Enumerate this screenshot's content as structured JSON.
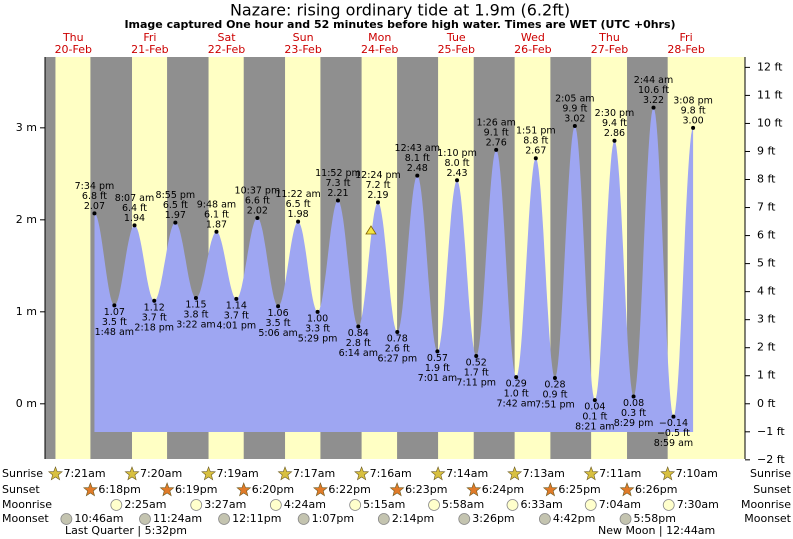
{
  "chart_data": {
    "type": "tide",
    "title": "Nazare: rising  ordinary tide at 1.9m (6.2ft)",
    "subtitle": "Image captured One hour and 52 minutes before high water. Times are WET (UTC +0hrs)",
    "weekdays": [
      "Thu",
      "Fri",
      "Sat",
      "Sun",
      "Mon",
      "Tue",
      "Wed",
      "Thu",
      "Fri"
    ],
    "dates": [
      "20-Feb",
      "21-Feb",
      "22-Feb",
      "23-Feb",
      "24-Feb",
      "25-Feb",
      "26-Feb",
      "27-Feb",
      "28-Feb"
    ],
    "x": [
      "7:34 pm",
      "1:48 am",
      "8:07 am",
      "2:18 pm",
      "8:55 pm",
      "3:22 am",
      "9:48 am",
      "4:01 pm",
      "10:37 pm",
      "5:06 am",
      "11:22 am",
      "5:29 pm",
      "11:52 pm",
      "6:14 am",
      "12:24 pm",
      "6:27 pm",
      "12:43 am",
      "7:01 am",
      "1:10 pm",
      "7:11 pm",
      "1:26 am",
      "7:42 am",
      "1:51 pm",
      "7:51 pm",
      "2:05 am",
      "8:21 am",
      "2:30 pm",
      "8:29 pm",
      "2:44 am",
      "8:59 am",
      "3:08 pm"
    ],
    "values": [
      2.07,
      1.07,
      1.94,
      1.12,
      1.97,
      1.15,
      1.87,
      1.14,
      2.02,
      1.06,
      1.98,
      1.0,
      2.21,
      0.84,
      2.19,
      0.78,
      2.48,
      0.57,
      2.43,
      0.52,
      2.76,
      0.29,
      2.67,
      0.28,
      3.02,
      0.04,
      2.86,
      0.08,
      3.22,
      -0.14,
      3.0
    ],
    "value_labels": [
      "2.07",
      "1.07",
      "1.94",
      "1.12",
      "1.97",
      "1.15",
      "1.87",
      "1.14",
      "2.02",
      "1.06",
      "1.98",
      "1.00",
      "2.21",
      "0.84",
      "2.19",
      "0.78",
      "2.48",
      "0.57",
      "2.43",
      "0.52",
      "2.76",
      "0.29",
      "2.67",
      "0.28",
      "3.02",
      "0.04",
      "2.86",
      "0.08",
      "3.22",
      "−0.14",
      "3.00"
    ],
    "ft_labels": [
      "6.8 ft",
      "3.5 ft",
      "6.4 ft",
      "3.7 ft",
      "6.5 ft",
      "3.8 ft",
      "6.1 ft",
      "3.7 ft",
      "6.6 ft",
      "3.5 ft",
      "6.5 ft",
      "3.3 ft",
      "7.3 ft",
      "2.8 ft",
      "7.2 ft",
      "2.6 ft",
      "8.1 ft",
      "1.9 ft",
      "8.0 ft",
      "1.7 ft",
      "9.1 ft",
      "1.0 ft",
      "8.8 ft",
      "0.9 ft",
      "9.9 ft",
      "0.1 ft",
      "9.4 ft",
      "0.3 ft",
      "10.6 ft",
      "−0.5 ft",
      "9.8 ft"
    ],
    "color": "#9ea6f2",
    "ylim": [
      -0.6,
      3.77
    ],
    "yticks": [
      {
        "value": 0,
        "label": "0 m"
      },
      {
        "value": 1,
        "label": "1 m"
      },
      {
        "value": 2,
        "label": "2 m"
      },
      {
        "value": 3,
        "label": "3 m"
      }
    ],
    "y2lim": [
      -1.97,
      12.37
    ],
    "y2ticks": [
      {
        "value": -2,
        "label": "−2 ft"
      },
      {
        "value": -1,
        "label": "−1 ft"
      },
      {
        "value": 0,
        "label": "0 ft"
      },
      {
        "value": 1,
        "label": "1 ft"
      },
      {
        "value": 2,
        "label": "2 ft"
      },
      {
        "value": 3,
        "label": "3 ft"
      },
      {
        "value": 4,
        "label": "4 ft"
      },
      {
        "value": 5,
        "label": "5 ft"
      },
      {
        "value": 6,
        "label": "6 ft"
      },
      {
        "value": 7,
        "label": "7 ft"
      },
      {
        "value": 8,
        "label": "8 ft"
      },
      {
        "value": 9,
        "label": "9 ft"
      },
      {
        "value": 10,
        "label": "10 ft"
      },
      {
        "value": 11,
        "label": "11 ft"
      },
      {
        "value": 12,
        "label": "12 ft"
      }
    ],
    "row_labels": [
      "Sunrise",
      "Sunset",
      "Moonrise",
      "Moonset"
    ],
    "sunrise": [
      "7:21am",
      "7:20am",
      "7:19am",
      "7:17am",
      "7:16am",
      "7:14am",
      "7:13am",
      "7:11am",
      "7:10am"
    ],
    "sunset": [
      "6:18pm",
      "6:19pm",
      "6:20pm",
      "6:22pm",
      "6:23pm",
      "6:24pm",
      "6:25pm",
      "6:26pm",
      null
    ],
    "moonrise": [
      null,
      "2:25am",
      "3:27am",
      "4:24am",
      "5:15am",
      "5:58am",
      "6:33am",
      "7:04am",
      "7:30am"
    ],
    "moonset": [
      "10:46am",
      "11:24am",
      "12:11pm",
      "1:07pm",
      "2:14pm",
      "3:26pm",
      "4:42pm",
      "5:58pm",
      null
    ],
    "moon_phases": [
      "Last Quarter | 5:32pm",
      "New Moon | 12:44am"
    ]
  }
}
